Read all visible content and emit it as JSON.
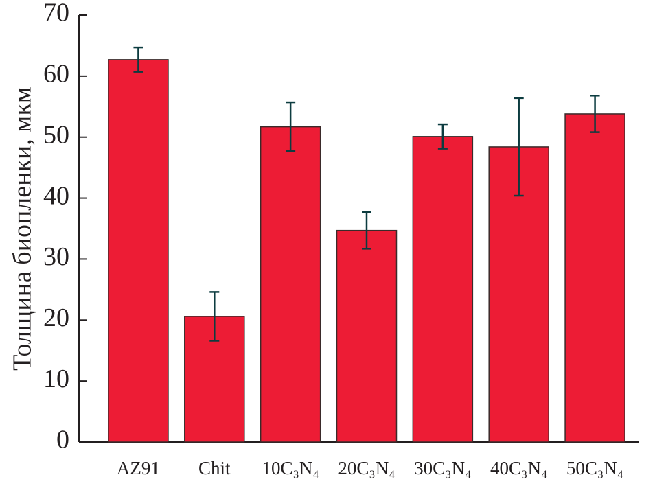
{
  "chart_data": {
    "type": "bar",
    "y_label": "Толщина биопленки, мкм",
    "categories": [
      "AZ91",
      "Chit",
      "10C₃N₄",
      "20C₃N₄",
      "30C₃N₄",
      "40C₃N₄",
      "50C₃N₄"
    ],
    "values": [
      62.7,
      20.6,
      51.7,
      34.7,
      50.1,
      48.4,
      53.8
    ],
    "errors": [
      2,
      4,
      4,
      3,
      2,
      8,
      3
    ],
    "color": "#ed1c35",
    "error_color": "#0d3c40",
    "ylim": [
      0,
      70
    ],
    "yticks": [
      0,
      10,
      20,
      30,
      40,
      50,
      60,
      70
    ]
  }
}
